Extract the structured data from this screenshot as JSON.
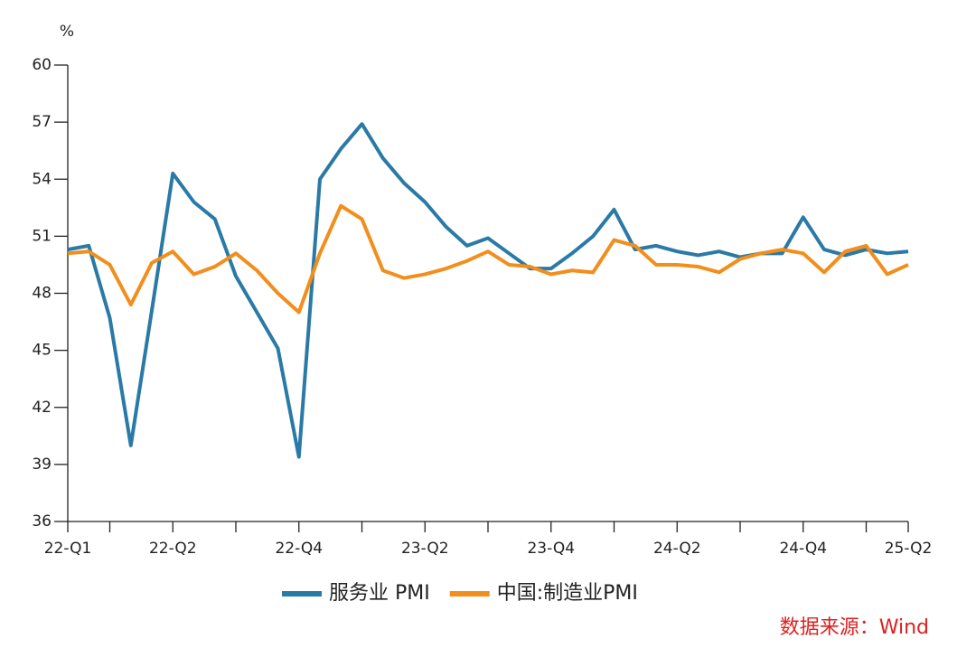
{
  "chart_data": {
    "type": "line",
    "y_unit": "%",
    "source": "数据来源：Wind",
    "categories": [
      "22-Q1",
      null,
      null,
      null,
      null,
      "22-Q2",
      null,
      null,
      null,
      null,
      null,
      "22-Q4",
      null,
      null,
      null,
      null,
      null,
      "23-Q2",
      null,
      null,
      null,
      null,
      null,
      "23-Q4",
      null,
      null,
      null,
      null,
      null,
      "24-Q2",
      null,
      null,
      null,
      null,
      null,
      "24-Q4",
      null,
      null,
      null,
      null,
      "25-Q2"
    ],
    "series": [
      {
        "name": "服务业 PMI",
        "color": "#2a7aa6",
        "values": [
          50.3,
          50.5,
          46.7,
          40.0,
          47.1,
          54.3,
          52.8,
          51.9,
          48.9,
          47.0,
          45.1,
          39.4,
          54.0,
          55.6,
          56.9,
          55.1,
          53.8,
          52.8,
          51.5,
          50.5,
          50.9,
          50.1,
          49.3,
          49.3,
          50.1,
          51.0,
          52.4,
          50.3,
          50.5,
          50.2,
          50.0,
          50.2,
          49.9,
          50.1,
          50.1,
          52.0,
          50.3,
          50.0,
          50.3,
          50.1,
          50.2
        ]
      },
      {
        "name": "中国:制造业PMI",
        "color": "#f28e1c",
        "values": [
          50.1,
          50.2,
          49.5,
          47.4,
          49.6,
          50.2,
          49.0,
          49.4,
          50.1,
          49.2,
          48.0,
          47.0,
          50.1,
          52.6,
          51.9,
          49.2,
          48.8,
          49.0,
          49.3,
          49.7,
          50.2,
          49.5,
          49.4,
          49.0,
          49.2,
          49.1,
          50.8,
          50.5,
          49.5,
          49.5,
          49.4,
          49.1,
          49.8,
          50.1,
          50.3,
          50.1,
          49.1,
          50.2,
          50.5,
          49.0,
          49.5
        ]
      }
    ],
    "ylim": [
      36,
      60
    ],
    "yticks": [
      36,
      39,
      42,
      45,
      48,
      51,
      54,
      57,
      60
    ]
  }
}
